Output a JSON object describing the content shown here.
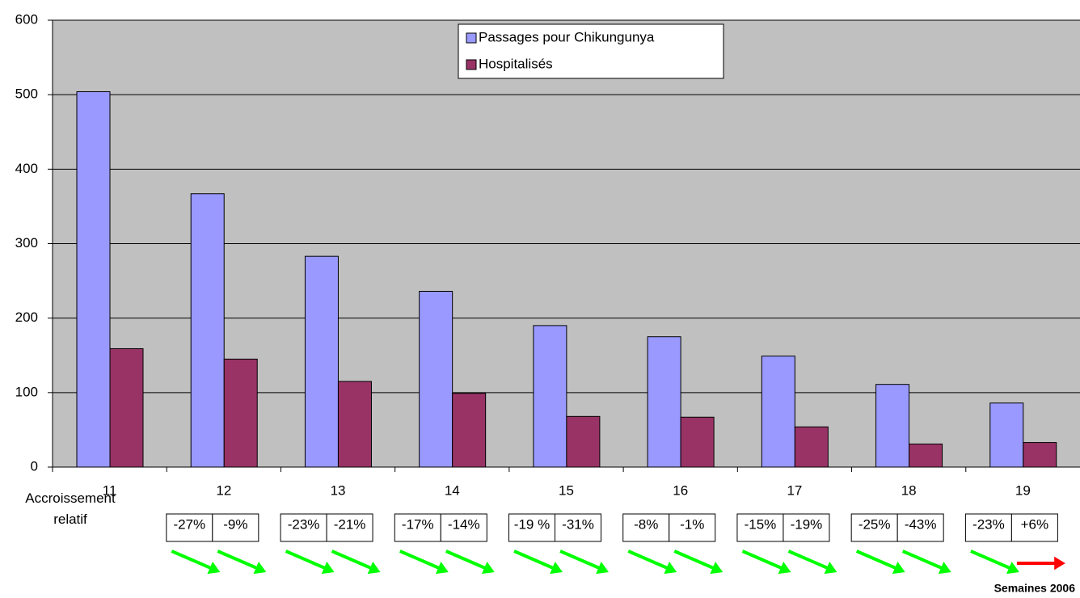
{
  "chart_data": {
    "type": "bar",
    "categories": [
      "11",
      "12",
      "13",
      "14",
      "15",
      "16",
      "17",
      "18",
      "19"
    ],
    "series": [
      {
        "name": "Passages pour Chikungunya",
        "color": "#9999ff",
        "values": [
          504,
          367,
          283,
          236,
          190,
          175,
          149,
          111,
          86
        ]
      },
      {
        "name": "Hospitalisés",
        "color": "#993366",
        "values": [
          159,
          145,
          115,
          99,
          68,
          67,
          54,
          31,
          33
        ]
      }
    ],
    "ylim": [
      0,
      600
    ],
    "yticks": [
      0,
      100,
      200,
      300,
      400,
      500,
      600
    ],
    "grid": true,
    "xlabel": "Semaines 2006",
    "legend": "top-center",
    "annotation_label": "Accroissement relatif",
    "changes": [
      null,
      [
        "-27%",
        "-9%"
      ],
      [
        "-23%",
        "-21%"
      ],
      [
        "-17%",
        "-14%"
      ],
      [
        "-19 %",
        "-31%"
      ],
      [
        "-8%",
        "-1%"
      ],
      [
        "-15%",
        "-19%"
      ],
      [
        "-25%",
        "-43%"
      ],
      [
        "-23%",
        "+6%"
      ]
    ],
    "down_color": "#00ff00",
    "up_color": "#ff0000"
  }
}
